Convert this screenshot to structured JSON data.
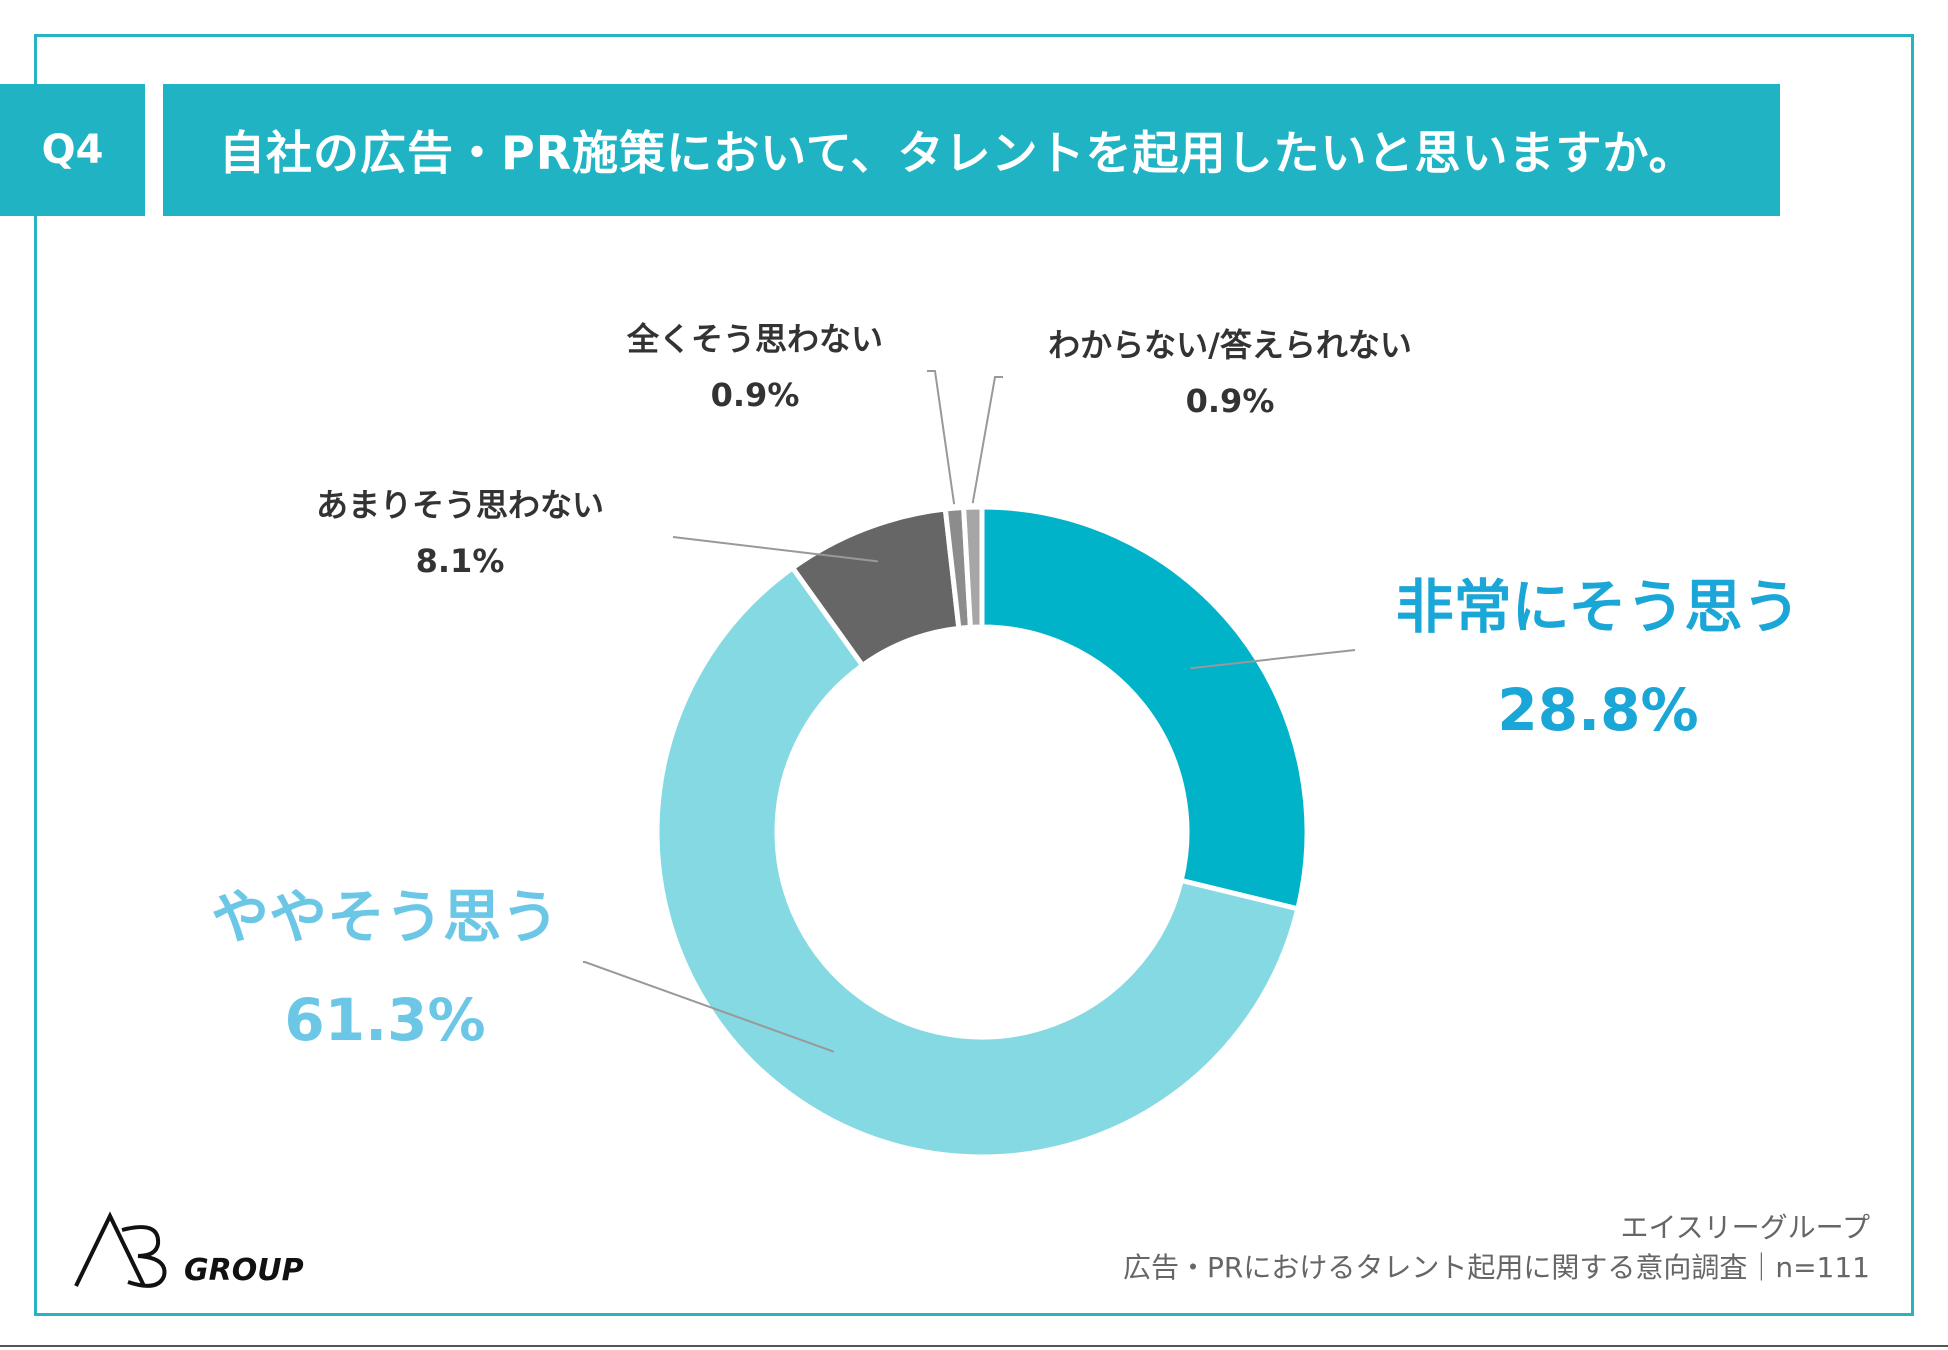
{
  "header": {
    "question_id": "Q4",
    "title": "自社の広告・PR施策において、タレントを起用したいと思いますか。"
  },
  "chart_data": {
    "type": "pie",
    "donut": true,
    "title": "自社の広告・PR施策において、タレントを起用したいと思いますか。",
    "categories": [
      "非常にそう思う",
      "ややそう思う",
      "あまりそう思わない",
      "全くそう思わない",
      "わからない/答えられない"
    ],
    "values": [
      28.8,
      61.3,
      8.1,
      0.9,
      0.9
    ],
    "value_labels": [
      "28.8%",
      "61.3%",
      "8.1%",
      "0.9%",
      "0.9%"
    ],
    "colors": [
      "#00b3c8",
      "#85d9e3",
      "#666666",
      "#8c8c8c",
      "#a6a6a6"
    ],
    "start": "12 o'clock",
    "direction": "clockwise"
  },
  "footer": {
    "company": "エイスリーグループ",
    "survey": "広告・PRにおけるタレント起用に関する意向調査｜n=111"
  },
  "logo": {
    "mark": "A3",
    "text": "GROUP"
  }
}
